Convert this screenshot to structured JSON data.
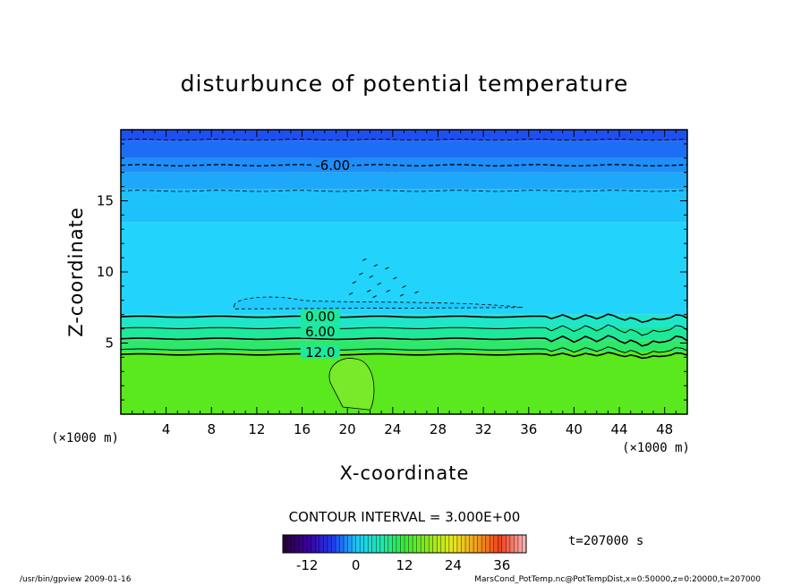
{
  "chart_data": {
    "type": "heatmap",
    "title": "disturbunce of potential temperature",
    "xlabel": "X-coordinate",
    "ylabel": "Z-coordinate",
    "x_unit": "(×1000 m)",
    "y_unit": "(×1000 m)",
    "xlim": [
      0,
      50
    ],
    "ylim": [
      0,
      20
    ],
    "x_ticks": [
      4,
      8,
      12,
      16,
      20,
      24,
      28,
      32,
      36,
      40,
      44,
      48
    ],
    "y_ticks": [
      5,
      10,
      15
    ],
    "contour_interval_text": "CONTOUR INTERVAL = 3.000E+00",
    "contour_labels": [
      "-6.00",
      "0.00",
      "6.00",
      "12.0"
    ],
    "colorbar": {
      "min": -18,
      "max": 42,
      "ticks": [
        -12,
        0,
        12,
        24,
        36
      ]
    },
    "time_label": "t=207000 s",
    "field_bands": [
      {
        "z_top": 20.0,
        "z_bottom": 19.2,
        "value": -15,
        "color": "#1e50f0"
      },
      {
        "z_top": 19.2,
        "z_bottom": 18.0,
        "value": -12,
        "color": "#1e6ef5"
      },
      {
        "z_top": 18.0,
        "z_bottom": 17.0,
        "value": -9,
        "color": "#1e8ef8"
      },
      {
        "z_top": 17.0,
        "z_bottom": 15.8,
        "value": -6,
        "color": "#1ea8fa"
      },
      {
        "z_top": 15.8,
        "z_bottom": 13.5,
        "value": -3,
        "color": "#1ec2fb"
      },
      {
        "z_top": 13.5,
        "z_bottom": 7.0,
        "value": -1.5,
        "color": "#22d4fc"
      },
      {
        "z_top": 7.0,
        "z_bottom": 6.1,
        "value": 1.5,
        "color": "#20e6c8"
      },
      {
        "z_top": 6.1,
        "z_bottom": 5.2,
        "value": 4.5,
        "color": "#1ee89a"
      },
      {
        "z_top": 5.2,
        "z_bottom": 4.4,
        "value": 7.5,
        "color": "#2ee86a"
      },
      {
        "z_top": 4.4,
        "z_bottom": 0.0,
        "value": 13.5,
        "color": "#5ae81e"
      }
    ]
  },
  "footer": {
    "left": "/usr/bin/gpview   2009-01-16",
    "right": "MarsCond_PotTemp.nc@PotTempDist,x=0:50000,z=0:20000,t=207000"
  }
}
